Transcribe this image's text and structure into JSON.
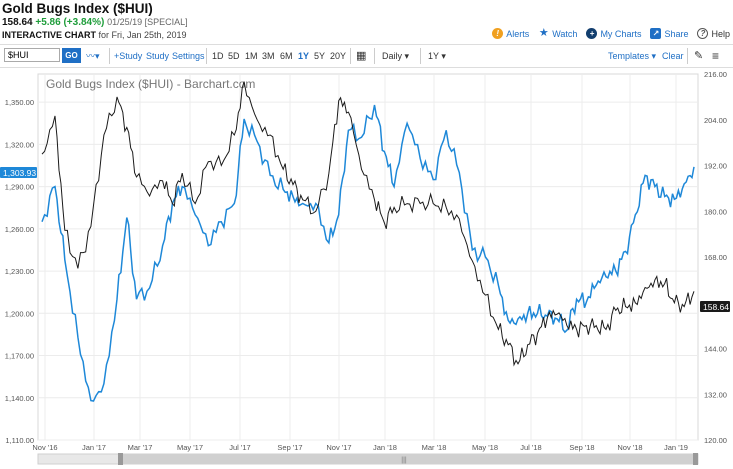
{
  "header": {
    "title": "Gold Bugs Index ($HUI)",
    "last": "158.64",
    "change": "+5.86 (+3.84%)",
    "meta": "01/25/19 [SPECIAL]",
    "subtitle_label": "INTERACTIVE CHART",
    "subtitle_date": "for Fri, Jan 25th, 2019",
    "links": [
      {
        "label": "Alerts",
        "icon": "alert-icon",
        "color": "#f0a020"
      },
      {
        "label": "Watch",
        "icon": "star-icon",
        "color": "#1f6fc5"
      },
      {
        "label": "My Charts",
        "icon": "plus-icon",
        "color": "#123e6e"
      },
      {
        "label": "Share",
        "icon": "share-icon",
        "color": "#1f6fc5"
      },
      {
        "label": "Help",
        "icon": "help-icon",
        "color": "#555"
      }
    ]
  },
  "toolbar": {
    "symbol": "$HUI",
    "go": "GO",
    "study": "+Study",
    "studies": "Study",
    "settings": "Settings",
    "ranges": [
      "1D",
      "5D",
      "1M",
      "3M",
      "6M",
      "1Y",
      "5Y",
      "20Y"
    ],
    "active_range": "1Y",
    "interval": "Daily",
    "period": "1Y",
    "templates": "Templates",
    "clear": "Clear"
  },
  "chart_data": {
    "type": "line",
    "title": "Gold Bugs Index ($HUI) - Barchart.com",
    "x_ticks": [
      "Nov '16",
      "Jan '17",
      "Mar '17",
      "May '17",
      "Jul '17",
      "Sep '17",
      "Nov '17",
      "Jan '18",
      "Mar '18",
      "May '18",
      "Jul '18",
      "Sep '18",
      "Nov '18",
      "Jan '19"
    ],
    "left_axis": {
      "ticks": [
        "1,350.00",
        "1,320.00",
        "1,290.00",
        "1,260.00",
        "1,230.00",
        "1,200.00",
        "1,170.00",
        "1,140.00",
        "1,110.00"
      ],
      "range": [
        1110,
        1370
      ],
      "last_label": "1,303.93"
    },
    "right_axis": {
      "ticks": [
        "216.00",
        "204.00",
        "192.00",
        "180.00",
        "168.00",
        "156.00",
        "144.00",
        "132.00",
        "120.00"
      ],
      "range": [
        120,
        216
      ],
      "last_label": "158.64"
    },
    "series": [
      {
        "axis": "left",
        "color": "#1e88d8",
        "x": [
          0,
          0.02,
          0.035,
          0.055,
          0.075,
          0.095,
          0.115,
          0.13,
          0.145,
          0.165,
          0.185,
          0.2,
          0.215,
          0.235,
          0.255,
          0.275,
          0.295,
          0.31,
          0.33,
          0.35,
          0.37,
          0.385,
          0.4,
          0.42,
          0.44,
          0.455,
          0.47,
          0.49,
          0.51,
          0.525,
          0.54,
          0.56,
          0.58,
          0.6,
          0.62,
          0.64,
          0.66,
          0.68,
          0.7,
          0.715,
          0.73,
          0.745,
          0.76,
          0.775,
          0.79,
          0.805,
          0.82,
          0.835,
          0.85,
          0.865,
          0.88,
          0.895,
          0.91,
          0.925,
          0.94,
          0.955,
          0.97,
          0.985,
          1
        ],
        "y": [
          1265,
          1290,
          1238,
          1183,
          1138,
          1150,
          1210,
          1268,
          1210,
          1218,
          1248,
          1278,
          1290,
          1270,
          1248,
          1265,
          1278,
          1338,
          1322,
          1298,
          1288,
          1283,
          1278,
          1278,
          1250,
          1270,
          1330,
          1325,
          1348,
          1315,
          1290,
          1335,
          1310,
          1295,
          1330,
          1300,
          1245,
          1240,
          1220,
          1195,
          1196,
          1200,
          1200,
          1198,
          1196,
          1188,
          1210,
          1208,
          1220,
          1226,
          1230,
          1244,
          1270,
          1298,
          1290,
          1283,
          1281,
          1292,
          1304
        ]
      },
      {
        "axis": "right",
        "color": "#1a1a1a",
        "x": [
          0,
          0.02,
          0.035,
          0.055,
          0.075,
          0.095,
          0.115,
          0.13,
          0.145,
          0.165,
          0.185,
          0.2,
          0.215,
          0.235,
          0.255,
          0.275,
          0.295,
          0.31,
          0.33,
          0.35,
          0.37,
          0.385,
          0.4,
          0.42,
          0.44,
          0.455,
          0.47,
          0.49,
          0.51,
          0.525,
          0.54,
          0.56,
          0.58,
          0.6,
          0.62,
          0.64,
          0.66,
          0.68,
          0.7,
          0.715,
          0.73,
          0.745,
          0.76,
          0.775,
          0.79,
          0.805,
          0.82,
          0.835,
          0.85,
          0.865,
          0.88,
          0.895,
          0.91,
          0.925,
          0.94,
          0.955,
          0.97,
          0.985,
          1
        ],
        "y": [
          195,
          205,
          175,
          165,
          176,
          200,
          210,
          202,
          189,
          184,
          188,
          182,
          190,
          182,
          193,
          192,
          200,
          214,
          204,
          200,
          191,
          187,
          183,
          180,
          190,
          209,
          206,
          191,
          183,
          177,
          181,
          182,
          182,
          182,
          181,
          178,
          167,
          158,
          149,
          145,
          140,
          145,
          148,
          152,
          153,
          150,
          149,
          150,
          150,
          149,
          154,
          155,
          156,
          160,
          162,
          161,
          156,
          155,
          159
        ]
      }
    ]
  }
}
